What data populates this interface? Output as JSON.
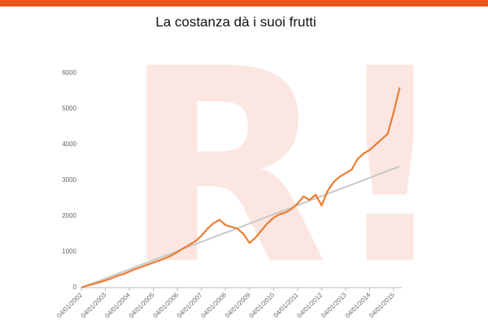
{
  "chart_data": {
    "type": "line",
    "title": "La costanza dà i suoi frutti",
    "watermark": "R!",
    "categories": [
      "04/01/2002",
      null,
      null,
      null,
      "04/01/2003",
      null,
      null,
      null,
      "04/01/2004",
      null,
      null,
      null,
      "04/01/2005",
      null,
      null,
      null,
      "04/01/2006",
      null,
      null,
      null,
      "04/01/2007",
      null,
      null,
      null,
      "04/01/2008",
      null,
      null,
      null,
      "04/01/2009",
      null,
      null,
      null,
      "04/01/2010",
      null,
      null,
      null,
      "04/01/2011",
      null,
      null,
      null,
      "04/01/2012",
      null,
      null,
      null,
      "04/01/2013",
      null,
      null,
      null,
      "04/01/2014",
      null,
      null,
      null,
      "04/01/2015",
      null
    ],
    "series": [
      {
        "color": "#ed7d31",
        "values": [
          0,
          60,
          100,
          150,
          200,
          260,
          330,
          380,
          450,
          520,
          580,
          640,
          700,
          760,
          830,
          900,
          1000,
          1100,
          1200,
          1300,
          1450,
          1650,
          1800,
          1900,
          1750,
          1700,
          1650,
          1500,
          1250,
          1400,
          1600,
          1800,
          1950,
          2050,
          2100,
          2200,
          2350,
          2550,
          2450,
          2600,
          2300,
          2700,
          2950,
          3100,
          3200,
          3300,
          3600,
          3750,
          3850,
          4000,
          4150,
          4300,
          4900,
          5600
        ]
      },
      {
        "color": "#c8c8c8",
        "values": [
          0,
          64,
          128,
          192,
          256,
          320,
          384,
          448,
          512,
          576,
          640,
          704,
          768,
          832,
          896,
          960,
          1024,
          1088,
          1152,
          1216,
          1280,
          1344,
          1408,
          1472,
          1536,
          1600,
          1664,
          1728,
          1792,
          1856,
          1920,
          1984,
          2048,
          2112,
          2176,
          2240,
          2304,
          2368,
          2432,
          2496,
          2560,
          2624,
          2688,
          2752,
          2816,
          2880,
          2944,
          3008,
          3072,
          3136,
          3200,
          3264,
          3328,
          3392
        ]
      }
    ],
    "ylim": [
      0,
      6000
    ],
    "yticks": [
      0,
      1000,
      2000,
      3000,
      4000,
      5000,
      6000
    ],
    "grid": false
  }
}
